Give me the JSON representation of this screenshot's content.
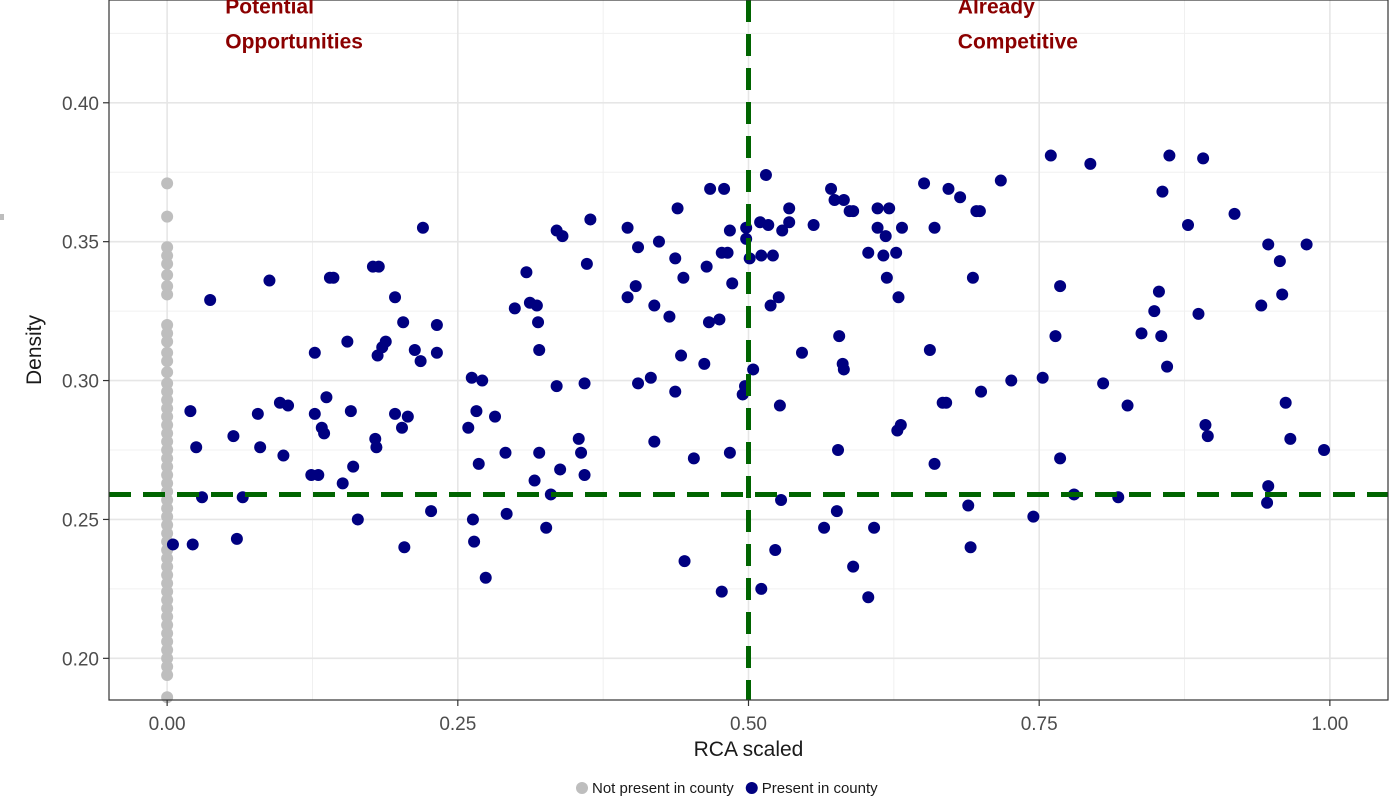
{
  "chart_data": {
    "type": "scatter",
    "title": "",
    "xlabel": "RCA scaled",
    "ylabel": "Density",
    "xlim": [
      -0.05,
      1.05
    ],
    "ylim": [
      0.185,
      0.437
    ],
    "x_ticks": [
      0,
      0.25,
      0.5,
      0.75,
      1.0
    ],
    "x_tick_labels": [
      "0.00",
      "0.25",
      "0.50",
      "0.75",
      "1.00"
    ],
    "y_ticks": [
      0.2,
      0.25,
      0.3,
      0.35,
      0.4
    ],
    "y_tick_labels": [
      "0.20",
      "0.25",
      "0.30",
      "0.35",
      "0.40"
    ],
    "grid": true,
    "legend_position": "bottom",
    "reference_lines": [
      {
        "orientation": "vertical",
        "value": 0.5,
        "style": "dashed",
        "color": "#006400"
      },
      {
        "orientation": "horizontal",
        "value": 0.259,
        "style": "dashed",
        "color": "#006400"
      }
    ],
    "annotations": [
      {
        "lines": [
          "Potential",
          "Opportunities"
        ],
        "x": 0.05,
        "y": 0.435
      },
      {
        "lines": [
          "Already",
          "Competitive"
        ],
        "x": 0.68,
        "y": 0.435
      }
    ],
    "series": [
      {
        "name": "Not present in county",
        "color": "#bebebe",
        "points": [
          [
            0,
            0.371
          ],
          [
            0,
            0.359
          ],
          [
            0,
            0.348
          ],
          [
            0,
            0.345
          ],
          [
            0,
            0.342
          ],
          [
            0,
            0.338
          ],
          [
            0,
            0.334
          ],
          [
            0,
            0.331
          ],
          [
            0,
            0.32
          ],
          [
            0,
            0.317
          ],
          [
            0,
            0.314
          ],
          [
            0,
            0.31
          ],
          [
            0,
            0.307
          ],
          [
            0,
            0.303
          ],
          [
            0,
            0.299
          ],
          [
            0,
            0.296
          ],
          [
            0,
            0.293
          ],
          [
            0,
            0.29
          ],
          [
            0,
            0.287
          ],
          [
            0,
            0.284
          ],
          [
            0,
            0.281
          ],
          [
            0,
            0.278
          ],
          [
            0,
            0.275
          ],
          [
            0,
            0.272
          ],
          [
            0,
            0.269
          ],
          [
            0,
            0.266
          ],
          [
            0,
            0.263
          ],
          [
            0,
            0.26
          ],
          [
            0,
            0.257
          ],
          [
            0,
            0.254
          ],
          [
            0,
            0.251
          ],
          [
            0,
            0.248
          ],
          [
            0,
            0.245
          ],
          [
            0,
            0.242
          ],
          [
            0,
            0.239
          ],
          [
            0,
            0.236
          ],
          [
            0,
            0.233
          ],
          [
            0,
            0.23
          ],
          [
            0,
            0.227
          ],
          [
            0,
            0.224
          ],
          [
            0,
            0.221
          ],
          [
            0,
            0.218
          ],
          [
            0,
            0.215
          ],
          [
            0,
            0.212
          ],
          [
            0,
            0.209
          ],
          [
            0,
            0.206
          ],
          [
            0,
            0.203
          ],
          [
            0,
            0.2
          ],
          [
            0,
            0.197
          ],
          [
            0,
            0.194
          ],
          [
            0,
            0.186
          ]
        ]
      },
      {
        "name": "Present in county",
        "color": "#000080",
        "points": [
          [
            0.005,
            0.241
          ],
          [
            0.02,
            0.289
          ],
          [
            0.022,
            0.241
          ],
          [
            0.025,
            0.276
          ],
          [
            0.03,
            0.258
          ],
          [
            0.037,
            0.329
          ],
          [
            0.057,
            0.28
          ],
          [
            0.06,
            0.243
          ],
          [
            0.065,
            0.258
          ],
          [
            0.078,
            0.288
          ],
          [
            0.08,
            0.276
          ],
          [
            0.088,
            0.336
          ],
          [
            0.097,
            0.292
          ],
          [
            0.1,
            0.273
          ],
          [
            0.104,
            0.291
          ],
          [
            0.124,
            0.266
          ],
          [
            0.127,
            0.31
          ],
          [
            0.127,
            0.288
          ],
          [
            0.13,
            0.266
          ],
          [
            0.133,
            0.283
          ],
          [
            0.135,
            0.281
          ],
          [
            0.137,
            0.294
          ],
          [
            0.14,
            0.337
          ],
          [
            0.143,
            0.337
          ],
          [
            0.151,
            0.263
          ],
          [
            0.155,
            0.314
          ],
          [
            0.158,
            0.289
          ],
          [
            0.16,
            0.269
          ],
          [
            0.164,
            0.25
          ],
          [
            0.177,
            0.341
          ],
          [
            0.179,
            0.279
          ],
          [
            0.18,
            0.276
          ],
          [
            0.181,
            0.309
          ],
          [
            0.182,
            0.341
          ],
          [
            0.185,
            0.312
          ],
          [
            0.188,
            0.314
          ],
          [
            0.196,
            0.288
          ],
          [
            0.196,
            0.33
          ],
          [
            0.202,
            0.283
          ],
          [
            0.203,
            0.321
          ],
          [
            0.204,
            0.24
          ],
          [
            0.207,
            0.287
          ],
          [
            0.213,
            0.311
          ],
          [
            0.218,
            0.307
          ],
          [
            0.22,
            0.355
          ],
          [
            0.227,
            0.253
          ],
          [
            0.232,
            0.32
          ],
          [
            0.232,
            0.31
          ],
          [
            0.259,
            0.283
          ],
          [
            0.262,
            0.301
          ],
          [
            0.263,
            0.25
          ],
          [
            0.264,
            0.242
          ],
          [
            0.266,
            0.289
          ],
          [
            0.268,
            0.27
          ],
          [
            0.271,
            0.3
          ],
          [
            0.274,
            0.229
          ],
          [
            0.282,
            0.287
          ],
          [
            0.291,
            0.274
          ],
          [
            0.292,
            0.252
          ],
          [
            0.299,
            0.326
          ],
          [
            0.309,
            0.339
          ],
          [
            0.312,
            0.328
          ],
          [
            0.316,
            0.264
          ],
          [
            0.318,
            0.327
          ],
          [
            0.319,
            0.321
          ],
          [
            0.32,
            0.311
          ],
          [
            0.32,
            0.274
          ],
          [
            0.326,
            0.247
          ],
          [
            0.33,
            0.259
          ],
          [
            0.335,
            0.354
          ],
          [
            0.335,
            0.298
          ],
          [
            0.338,
            0.268
          ],
          [
            0.34,
            0.352
          ],
          [
            0.354,
            0.279
          ],
          [
            0.356,
            0.274
          ],
          [
            0.359,
            0.266
          ],
          [
            0.359,
            0.299
          ],
          [
            0.361,
            0.342
          ],
          [
            0.364,
            0.358
          ],
          [
            0.396,
            0.355
          ],
          [
            0.396,
            0.33
          ],
          [
            0.403,
            0.334
          ],
          [
            0.405,
            0.348
          ],
          [
            0.405,
            0.299
          ],
          [
            0.416,
            0.301
          ],
          [
            0.419,
            0.327
          ],
          [
            0.419,
            0.278
          ],
          [
            0.423,
            0.35
          ],
          [
            0.432,
            0.323
          ],
          [
            0.437,
            0.344
          ],
          [
            0.437,
            0.296
          ],
          [
            0.439,
            0.362
          ],
          [
            0.442,
            0.309
          ],
          [
            0.444,
            0.337
          ],
          [
            0.445,
            0.235
          ],
          [
            0.453,
            0.272
          ],
          [
            0.462,
            0.306
          ],
          [
            0.464,
            0.341
          ],
          [
            0.466,
            0.321
          ],
          [
            0.467,
            0.369
          ],
          [
            0.475,
            0.322
          ],
          [
            0.477,
            0.224
          ],
          [
            0.477,
            0.346
          ],
          [
            0.479,
            0.369
          ],
          [
            0.482,
            0.346
          ],
          [
            0.484,
            0.354
          ],
          [
            0.484,
            0.274
          ],
          [
            0.486,
            0.335
          ],
          [
            0.495,
            0.295
          ],
          [
            0.497,
            0.298
          ],
          [
            0.498,
            0.355
          ],
          [
            0.498,
            0.351
          ],
          [
            0.501,
            0.344
          ],
          [
            0.504,
            0.304
          ],
          [
            0.51,
            0.357
          ],
          [
            0.511,
            0.225
          ],
          [
            0.511,
            0.345
          ],
          [
            0.515,
            0.374
          ],
          [
            0.517,
            0.356
          ],
          [
            0.519,
            0.327
          ],
          [
            0.521,
            0.345
          ],
          [
            0.523,
            0.239
          ],
          [
            0.526,
            0.33
          ],
          [
            0.527,
            0.291
          ],
          [
            0.528,
            0.257
          ],
          [
            0.529,
            0.354
          ],
          [
            0.535,
            0.362
          ],
          [
            0.535,
            0.357
          ],
          [
            0.546,
            0.31
          ],
          [
            0.556,
            0.356
          ],
          [
            0.565,
            0.247
          ],
          [
            0.571,
            0.369
          ],
          [
            0.574,
            0.365
          ],
          [
            0.576,
            0.253
          ],
          [
            0.577,
            0.275
          ],
          [
            0.578,
            0.316
          ],
          [
            0.581,
            0.306
          ],
          [
            0.582,
            0.365
          ],
          [
            0.582,
            0.304
          ],
          [
            0.587,
            0.361
          ],
          [
            0.59,
            0.361
          ],
          [
            0.59,
            0.233
          ],
          [
            0.603,
            0.346
          ],
          [
            0.603,
            0.222
          ],
          [
            0.608,
            0.247
          ],
          [
            0.611,
            0.355
          ],
          [
            0.611,
            0.362
          ],
          [
            0.616,
            0.345
          ],
          [
            0.618,
            0.352
          ],
          [
            0.619,
            0.337
          ],
          [
            0.621,
            0.362
          ],
          [
            0.627,
            0.346
          ],
          [
            0.628,
            0.282
          ],
          [
            0.629,
            0.33
          ],
          [
            0.631,
            0.284
          ],
          [
            0.632,
            0.355
          ],
          [
            0.651,
            0.371
          ],
          [
            0.656,
            0.311
          ],
          [
            0.66,
            0.355
          ],
          [
            0.66,
            0.27
          ],
          [
            0.667,
            0.292
          ],
          [
            0.67,
            0.292
          ],
          [
            0.672,
            0.369
          ],
          [
            0.682,
            0.366
          ],
          [
            0.689,
            0.255
          ],
          [
            0.691,
            0.24
          ],
          [
            0.693,
            0.337
          ],
          [
            0.696,
            0.361
          ],
          [
            0.699,
            0.361
          ],
          [
            0.7,
            0.296
          ],
          [
            0.717,
            0.372
          ],
          [
            0.726,
            0.3
          ],
          [
            0.745,
            0.251
          ],
          [
            0.753,
            0.301
          ],
          [
            0.76,
            0.381
          ],
          [
            0.764,
            0.316
          ],
          [
            0.768,
            0.334
          ],
          [
            0.768,
            0.272
          ],
          [
            0.78,
            0.259
          ],
          [
            0.794,
            0.378
          ],
          [
            0.805,
            0.299
          ],
          [
            0.818,
            0.258
          ],
          [
            0.826,
            0.291
          ],
          [
            0.838,
            0.317
          ],
          [
            0.849,
            0.325
          ],
          [
            0.853,
            0.332
          ],
          [
            0.855,
            0.316
          ],
          [
            0.856,
            0.368
          ],
          [
            0.86,
            0.305
          ],
          [
            0.862,
            0.381
          ],
          [
            0.878,
            0.356
          ],
          [
            0.887,
            0.324
          ],
          [
            0.891,
            0.38
          ],
          [
            0.893,
            0.284
          ],
          [
            0.895,
            0.28
          ],
          [
            0.918,
            0.36
          ],
          [
            0.941,
            0.327
          ],
          [
            0.946,
            0.256
          ],
          [
            0.947,
            0.262
          ],
          [
            0.947,
            0.349
          ],
          [
            0.957,
            0.343
          ],
          [
            0.959,
            0.331
          ],
          [
            0.962,
            0.292
          ],
          [
            0.966,
            0.279
          ],
          [
            0.98,
            0.349
          ],
          [
            0.995,
            0.275
          ]
        ]
      }
    ]
  }
}
